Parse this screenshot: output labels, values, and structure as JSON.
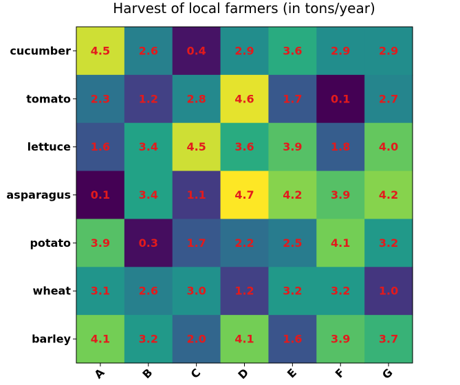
{
  "chart_data": {
    "type": "heatmap",
    "title": "Harvest of local farmers (in tons/year)",
    "xlabel": "",
    "ylabel": "",
    "x_categories": [
      "A",
      "B",
      "C",
      "D",
      "E",
      "F",
      "G"
    ],
    "y_categories": [
      "cucumber",
      "tomato",
      "lettuce",
      "asparagus",
      "potato",
      "wheat",
      "barley"
    ],
    "values": [
      [
        4.5,
        2.6,
        0.4,
        2.9,
        3.6,
        2.9,
        2.9
      ],
      [
        2.3,
        1.2,
        2.8,
        4.6,
        1.7,
        0.1,
        2.7
      ],
      [
        1.6,
        3.4,
        4.5,
        3.6,
        3.9,
        1.8,
        4.0
      ],
      [
        0.1,
        3.4,
        1.1,
        4.7,
        4.2,
        3.9,
        4.2
      ],
      [
        3.9,
        0.3,
        1.7,
        2.2,
        2.5,
        4.1,
        3.2
      ],
      [
        3.1,
        2.6,
        3.0,
        1.2,
        3.2,
        3.2,
        1.0
      ],
      [
        4.1,
        3.2,
        2.0,
        4.1,
        1.6,
        3.9,
        3.7
      ]
    ],
    "value_label_format": "0.0",
    "colormap": "viridis",
    "annotation_color": "#e31a1c",
    "x_tick_rotation_deg": 45,
    "grid": false,
    "legend": false
  }
}
